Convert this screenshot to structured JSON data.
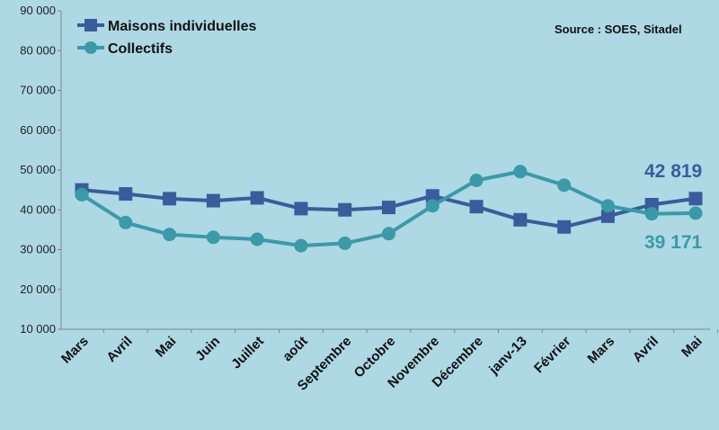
{
  "source": "Source : SOES, Sitadel",
  "chart_data": {
    "type": "line",
    "title": "",
    "xlabel": "",
    "ylabel": "",
    "categories": [
      "Mars",
      "Avril",
      "Mai",
      "Juin",
      "Juillet",
      "août",
      "Septembre",
      "Octobre",
      "Novembre",
      "Décembre",
      "janv-13",
      "Février",
      "Mars",
      "Avril",
      "Mai"
    ],
    "ylim": [
      10000,
      90000
    ],
    "yticks": [
      10000,
      20000,
      30000,
      40000,
      50000,
      60000,
      70000,
      80000,
      90000
    ],
    "ytick_labels": [
      "10 000",
      "20 000",
      "30 000",
      "40 000",
      "50 000",
      "60 000",
      "70 000",
      "80 000",
      "90 000"
    ],
    "grid": false,
    "legend_position": "top-left",
    "series": [
      {
        "name": "Maisons individuelles",
        "marker": "square",
        "color": "#3a5c9c",
        "values": [
          45000,
          44000,
          42800,
          42300,
          43000,
          40300,
          40000,
          40600,
          43500,
          40800,
          37500,
          35700,
          38400,
          41300,
          42819
        ]
      },
      {
        "name": "Collectifs",
        "marker": "circle",
        "color": "#3a9aa8",
        "values": [
          43800,
          36800,
          33800,
          33100,
          32600,
          31000,
          31600,
          34000,
          41000,
          47400,
          49600,
          46200,
          41000,
          39000,
          39171
        ]
      }
    ],
    "annotations": [
      {
        "text": "42 819",
        "series": "Maisons individuelles",
        "color": "#3a5c9c"
      },
      {
        "text": "39 171",
        "series": "Collectifs",
        "color": "#3a9aa8"
      }
    ]
  }
}
